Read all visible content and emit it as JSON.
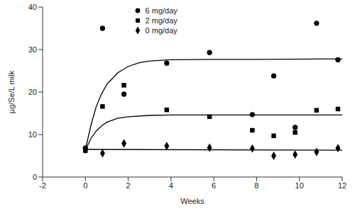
{
  "chart_data": {
    "type": "scatter",
    "x_label": "Weeks",
    "y_label": "µg/Se/L milk",
    "xlim": [
      -2,
      12
    ],
    "xticks": [
      -2,
      0,
      2,
      4,
      6,
      8,
      10,
      12
    ],
    "ylim": [
      0,
      40
    ],
    "yticks": [
      0,
      10,
      20,
      30,
      40
    ],
    "grid": false,
    "legend": "top",
    "series": [
      {
        "name": "6 mg/day",
        "color": "#000000",
        "marker": "circle",
        "x": [
          0,
          0.8,
          1.8,
          3.8,
          5.8,
          7.8,
          8.8,
          9.8,
          10.8,
          11.8
        ],
        "values": [
          6.8,
          35,
          19.5,
          26.8,
          29.3,
          14.7,
          23.8,
          11.7,
          36.2,
          27.6
        ],
        "fit": {
          "x": [
            0,
            0.25,
            0.5,
            0.75,
            1,
            1.5,
            2,
            2.5,
            3,
            4,
            6,
            8,
            12
          ],
          "values": [
            6.5,
            12,
            16.5,
            19.5,
            21.8,
            24.5,
            26,
            26.9,
            27.3,
            27.6,
            27.7,
            27.7,
            27.8
          ]
        }
      },
      {
        "name": "2 mg/day",
        "color": "#000000",
        "marker": "square",
        "x": [
          0,
          0.8,
          1.8,
          3.8,
          5.8,
          7.8,
          8.8,
          9.8,
          10.8,
          11.8
        ],
        "values": [
          6.2,
          16.6,
          21.6,
          15.8,
          14.2,
          11,
          9.7,
          10.5,
          15.7,
          16
        ],
        "fit": {
          "x": [
            0,
            0.25,
            0.5,
            0.75,
            1,
            1.5,
            2,
            3,
            4,
            12
          ],
          "values": [
            6.3,
            9,
            10.8,
            12,
            12.9,
            13.8,
            14.2,
            14.5,
            14.6,
            14.6
          ]
        }
      },
      {
        "name": "0 mg/day",
        "color": "#000000",
        "marker": "diamond",
        "x": [
          0,
          0.8,
          1.8,
          3.8,
          5.8,
          7.8,
          8.8,
          9.8,
          10.8,
          11.8
        ],
        "values": [
          6.5,
          5.6,
          7.9,
          7.3,
          6.9,
          6.7,
          5,
          5.3,
          5.9,
          6.8
        ],
        "fit": {
          "x": [
            0,
            12
          ],
          "values": [
            6.5,
            6.3
          ]
        }
      }
    ]
  }
}
